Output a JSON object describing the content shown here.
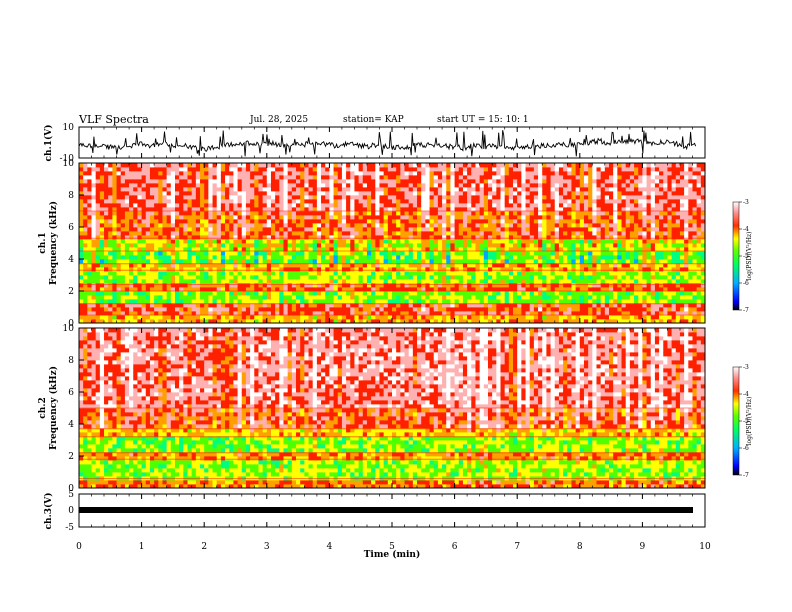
{
  "header": {
    "title": "VLF Spectra",
    "date": "Jul. 28, 2025",
    "station": "station= KAP",
    "start": "start UT =  15: 10: 1"
  },
  "colors": {
    "spectrum": [
      "#0000ff",
      "#00a8ff",
      "#00ff80",
      "#50ff00",
      "#ffff00",
      "#ffa000",
      "#ff2000",
      "#ffb0b0",
      "#ffffff"
    ]
  },
  "chart_data": [
    {
      "type": "line",
      "name": "ch1-waveform",
      "ylabel": "ch.1(V)",
      "ylim": [
        -10,
        10
      ],
      "yticks": [
        "10",
        "-10"
      ],
      "xlim": [
        0,
        10
      ],
      "note": "noisy waveform centered near -2 V with spikes up to about 8 V"
    },
    {
      "type": "heatmap",
      "name": "ch1-spectrogram",
      "ylabel_line1": "ch.1",
      "ylabel_line2": "Frequency (kHz)",
      "ylim": [
        0,
        10
      ],
      "yticks": [
        "0",
        "2",
        "4",
        "6",
        "8",
        "10"
      ],
      "xlim": [
        0,
        9.85
      ],
      "colorbar": {
        "label": "log(PSD)(V²/Hz)",
        "range": [
          -7,
          -3
        ],
        "ticks": [
          "-3",
          "-4",
          "-5",
          "-6",
          "-7"
        ]
      },
      "bands": [
        {
          "from": 0,
          "to": 0.5,
          "level": -4.6
        },
        {
          "from": 0.5,
          "to": 1.2,
          "level": -4.0
        },
        {
          "from": 1.2,
          "to": 2.0,
          "level": -5.4
        },
        {
          "from": 2.0,
          "to": 2.4,
          "level": -4.2
        },
        {
          "from": 2.4,
          "to": 3.3,
          "level": -5.3
        },
        {
          "from": 3.3,
          "to": 3.7,
          "level": -4.6
        },
        {
          "from": 3.7,
          "to": 4.5,
          "level": -5.5
        },
        {
          "from": 4.5,
          "to": 5.3,
          "level": -5.0
        },
        {
          "from": 5.3,
          "to": 7.0,
          "level": -4.1
        },
        {
          "from": 7.0,
          "to": 10.0,
          "level": -3.7
        }
      ]
    },
    {
      "type": "heatmap",
      "name": "ch2-spectrogram",
      "ylabel_line1": "ch.2",
      "ylabel_line2": "Frequency (kHz)",
      "ylim": [
        0,
        10
      ],
      "yticks": [
        "0",
        "2",
        "4",
        "6",
        "8",
        "10"
      ],
      "xlim": [
        0,
        9.85
      ],
      "colorbar": {
        "label": "log(PSD)(V²/Hz)",
        "range": [
          -7,
          -3
        ],
        "ticks": [
          "-3",
          "-4",
          "-5",
          "-6",
          "-7"
        ]
      },
      "bands": [
        {
          "from": 0,
          "to": 0.6,
          "level": -4.3
        },
        {
          "from": 0.6,
          "to": 1.8,
          "level": -5.3
        },
        {
          "from": 1.8,
          "to": 2.2,
          "level": -4.4
        },
        {
          "from": 2.2,
          "to": 3.2,
          "level": -5.4
        },
        {
          "from": 3.2,
          "to": 3.7,
          "level": -4.7
        },
        {
          "from": 3.7,
          "to": 5.0,
          "level": -4.0
        },
        {
          "from": 5.0,
          "to": 10.0,
          "level": -3.6
        }
      ]
    },
    {
      "type": "line",
      "name": "ch3-waveform",
      "ylabel": "ch.3(V)",
      "ylim": [
        -5,
        5
      ],
      "yticks": [
        "5",
        "0",
        "-5"
      ],
      "xlim": [
        0,
        10
      ],
      "note": "flat thick trace at about -2 V"
    }
  ],
  "x_axis": {
    "label": "Time (min)",
    "range": [
      0,
      10
    ],
    "ticks": [
      "0",
      "1",
      "2",
      "3",
      "4",
      "5",
      "6",
      "7",
      "8",
      "9",
      "10"
    ]
  }
}
